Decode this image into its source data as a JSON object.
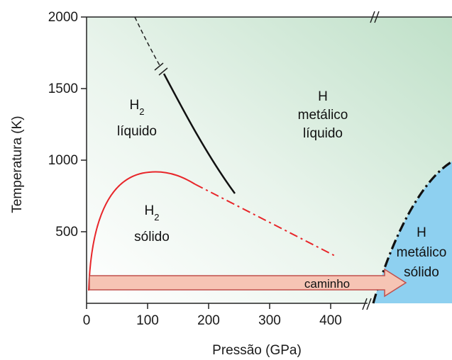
{
  "chart_data": {
    "type": "diagram",
    "xlabel": "Pressão (GPa)",
    "ylabel": "Temperatura (K)",
    "xlim": [
      0,
      460
    ],
    "ylim": [
      0,
      2000
    ],
    "x_ticks": [
      "0",
      "100",
      "200",
      "300",
      "400"
    ],
    "y_ticks": [
      "2000",
      "1500",
      "1000",
      "500"
    ],
    "regions": {
      "h2_liquid": {
        "line1": "H",
        "sub": "2",
        "line2": "líquido"
      },
      "h2_solid": {
        "line1": "H",
        "sub": "2",
        "line2": "sólido"
      },
      "h_metallic_liquid": {
        "line1": "H",
        "line2": "metálico",
        "line3": "líquido"
      },
      "h_metallic_solid": {
        "line1": "H",
        "line2": "metálico",
        "line3": "sólido"
      }
    },
    "path_label": "caminho",
    "colors": {
      "liquid_gradient_top": "#bfe0c8",
      "solid_metal_fill": "#8ed0f0",
      "melting_line": "#e8262a",
      "boundary_line": "#111111",
      "arrow_fill": "#f6c4b4",
      "arrow_stroke": "#c0504d"
    }
  }
}
